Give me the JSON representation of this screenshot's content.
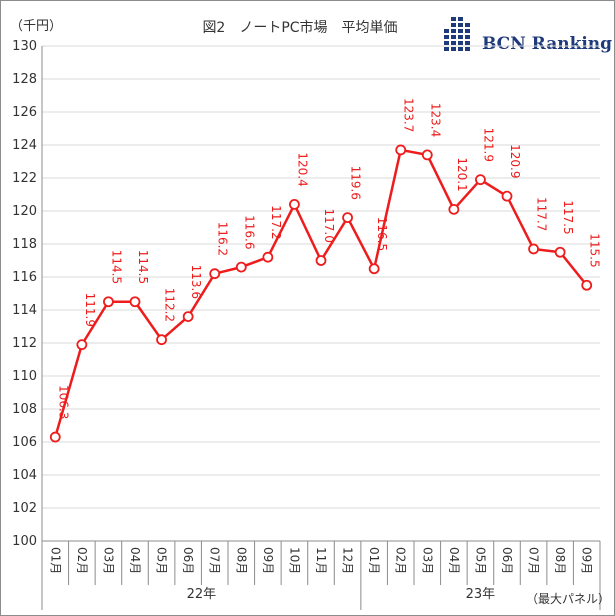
{
  "chart_title": "図2　ノートPC市場　平均単価",
  "unit_label": "（千円）",
  "footnote": "（最大パネル）",
  "logo": {
    "text": "BCN Ranking",
    "color": "#1f3a7a"
  },
  "colors": {
    "series": "#ee1c1c",
    "grid": "#d9d9d9",
    "axis": "#8c8c8c"
  },
  "chart_data": {
    "type": "line",
    "title": "図2　ノートPC市場　平均単価",
    "ylabel": "（千円）",
    "ylim": [
      100,
      130
    ],
    "ystep": 2,
    "grid": true,
    "categories": [
      "01月",
      "02月",
      "03月",
      "04月",
      "05月",
      "06月",
      "07月",
      "08月",
      "09月",
      "10月",
      "11月",
      "12月",
      "01月",
      "02月",
      "03月",
      "04月",
      "05月",
      "06月",
      "07月",
      "08月",
      "09月"
    ],
    "groups": [
      {
        "label": "22年",
        "count": 12
      },
      {
        "label": "23年",
        "count": 9
      }
    ],
    "series": [
      {
        "values": [
          106.3,
          111.9,
          114.5,
          114.5,
          112.2,
          113.6,
          116.2,
          116.6,
          117.2,
          120.4,
          117.0,
          119.6,
          116.5,
          123.7,
          123.4,
          120.1,
          121.9,
          120.9,
          117.7,
          117.5,
          115.5
        ],
        "labels": [
          "106.3",
          "111.9",
          "114.5",
          "114.5",
          "112.2",
          "113.6",
          "116.2",
          "116.6",
          "117.2",
          "120.4",
          "117.0",
          "119.6",
          "116.5",
          "123.7",
          "123.4",
          "120.1",
          "121.9",
          "120.9",
          "117.7",
          "117.5",
          "115.5"
        ]
      }
    ]
  }
}
